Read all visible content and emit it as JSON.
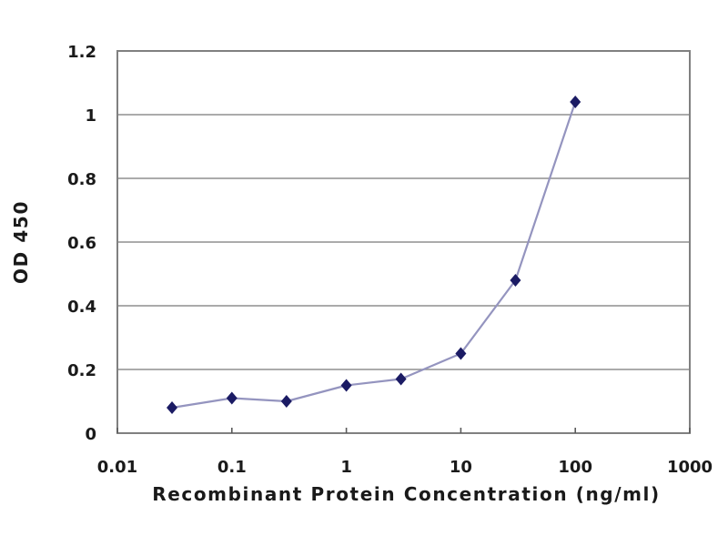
{
  "chart_data": {
    "type": "line",
    "xlabel": "Recombinant Protein Concentration (ng/ml)",
    "ylabel": "OD 450",
    "x": [
      0.03,
      0.1,
      0.3,
      1,
      3,
      10,
      30,
      100
    ],
    "y": [
      0.08,
      0.11,
      0.1,
      0.15,
      0.17,
      0.25,
      0.48,
      1.04
    ],
    "x_scale": "log",
    "xlim": [
      0.01,
      1000
    ],
    "ylim": [
      0,
      1.2
    ],
    "x_ticks": [
      0.01,
      0.1,
      1,
      10,
      100,
      1000
    ],
    "x_tick_labels": [
      "0.01",
      "0.1",
      "1",
      "10",
      "100",
      "1000"
    ],
    "y_ticks": [
      0,
      0.2,
      0.4,
      0.6,
      0.8,
      1,
      1.2
    ],
    "y_tick_labels": [
      "0",
      "0.2",
      "0.4",
      "0.6",
      "0.8",
      "1",
      "1.2"
    ],
    "grid": "horizontal",
    "legend": false,
    "marker": "diamond",
    "colors": {
      "line": "#9494bf",
      "marker": "#1b1b64",
      "grid": "#8f8f8f",
      "axis": "#808080",
      "tick": "#5a5a5a",
      "text": "#1a1a1a",
      "background": "#ffffff"
    }
  }
}
